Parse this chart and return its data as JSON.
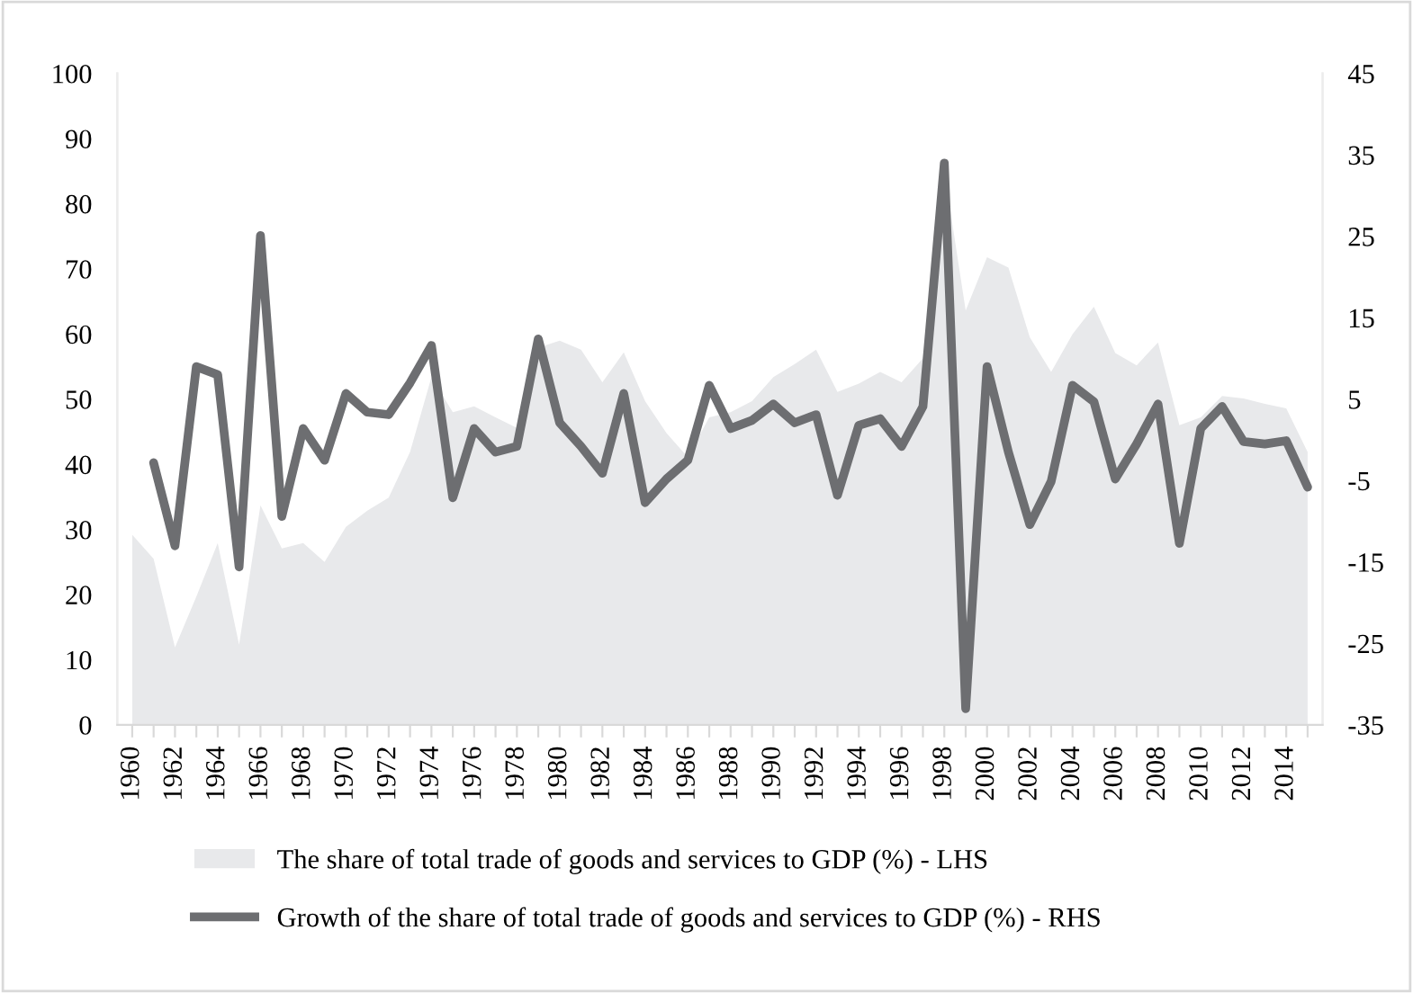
{
  "chart_data": {
    "type": "area",
    "categories": [
      "1960",
      null,
      "1962",
      null,
      "1964",
      null,
      "1966",
      null,
      "1968",
      null,
      "1970",
      null,
      "1972",
      null,
      "1974",
      null,
      "1976",
      null,
      "1978",
      null,
      "1980",
      null,
      "1982",
      null,
      "1984",
      null,
      "1986",
      null,
      "1988",
      null,
      "1990",
      null,
      "1992",
      null,
      "1994",
      null,
      "1996",
      null,
      "1998",
      null,
      "2000",
      null,
      "2002",
      null,
      "2004",
      null,
      "2006",
      null,
      "2008",
      null,
      "2010",
      null,
      "2012",
      null,
      "2014",
      null
    ],
    "series": [
      {
        "name": "The share of total trade of goods and services to GDP (%) - LHS",
        "color": "#e8e9eb",
        "values": [
          29.2,
          25.5,
          11.9,
          19.7,
          27.9,
          12.3,
          33.7,
          27.1,
          27.9,
          25.0,
          30.4,
          32.9,
          34.9,
          41.9,
          53.4,
          48.0,
          48.9,
          47.2,
          45.6,
          57.9,
          59.0,
          57.6,
          52.6,
          57.2,
          49.7,
          44.8,
          41.1,
          47.2,
          48.0,
          49.7,
          53.4,
          55.4,
          57.6,
          51.1,
          52.4,
          54.2,
          52.6,
          56.3,
          85,
          63.6,
          71.8,
          70.2,
          59.5,
          54.2,
          60.0,
          64.2,
          57.1,
          55.2,
          58.7,
          46.0,
          47.2,
          50.5,
          50.1,
          49.3,
          48.6,
          41.9
        ]
      },
      {
        "name": "Growth of the share of total trade of goods and services to GDP (%) - RHS",
        "type": "line",
        "axis": "y2",
        "color": "#6d6e71",
        "values": [
          null,
          -2.8,
          -13.0,
          9.0,
          8.0,
          -15.6,
          25.1,
          -9.4,
          1.4,
          -2.5,
          5.7,
          3.4,
          3.1,
          7.0,
          11.6,
          -7.1,
          1.4,
          -1.5,
          -0.8,
          12.4,
          2.1,
          -0.8,
          -4.1,
          5.7,
          -7.7,
          -4.8,
          -2.5,
          6.7,
          1.4,
          2.4,
          4.4,
          2.1,
          3.1,
          -6.8,
          1.8,
          2.6,
          -0.8,
          4.1,
          34,
          -33.0,
          9.0,
          -1.5,
          -10.4,
          -5.1,
          6.7,
          4.7,
          -4.8,
          -0.5,
          4.4,
          -12.7,
          1.4,
          4.1,
          -0.2,
          -0.5,
          -0.1,
          -5.8
        ]
      }
    ],
    "ylim": [
      0,
      100
    ],
    "yticks": [
      0,
      10,
      20,
      30,
      40,
      50,
      60,
      70,
      80,
      90,
      100
    ],
    "y2lim": [
      -35,
      45
    ],
    "y2ticks": [
      -35,
      -25,
      -15,
      -5,
      5,
      15,
      25,
      35,
      45
    ],
    "grid": false,
    "legend": "bottom",
    "line_style": "solid",
    "marker": "none"
  }
}
